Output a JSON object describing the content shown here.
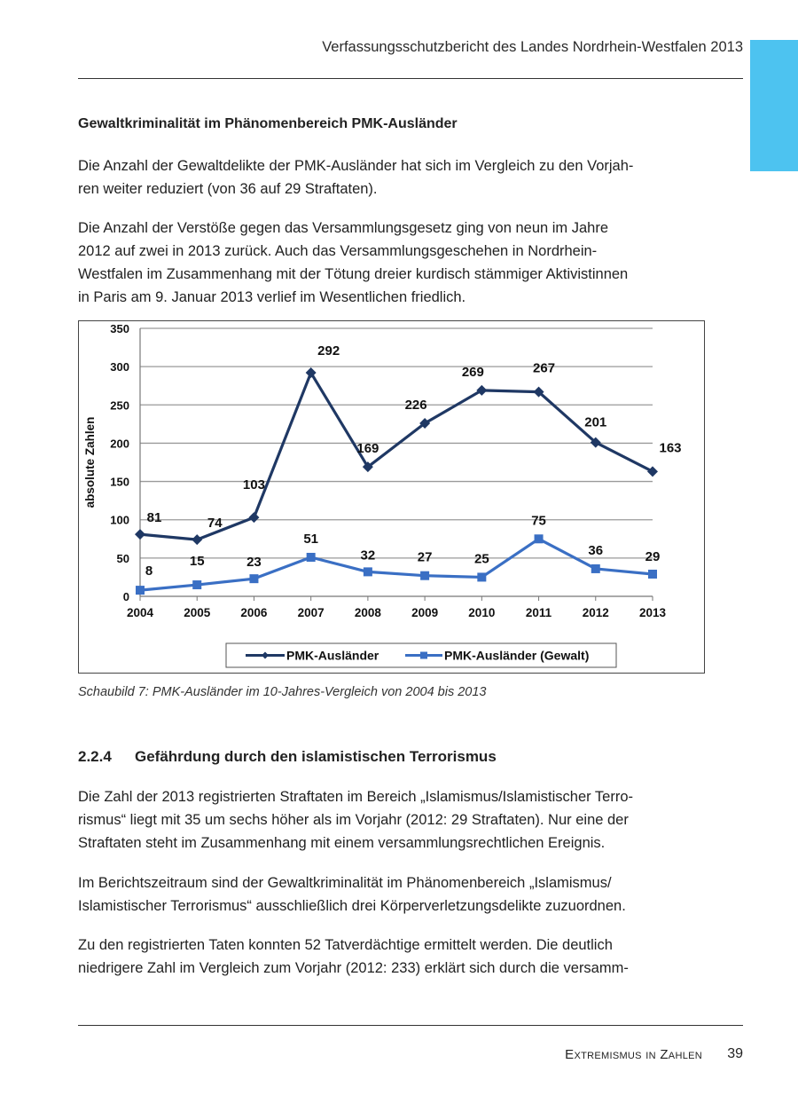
{
  "header": {
    "title": "Verfassungsschutzbericht des Landes Nordrhein-Westfalen 2013"
  },
  "section_a": {
    "heading": "Gewaltkriminalität im Phänomenbereich PMK-Ausländer",
    "p1_l1": "Die Anzahl der Gewaltdelikte der PMK-Ausländer hat sich im Vergleich zu den Vorjah-",
    "p1_l2": "ren weiter reduziert (von 36 auf 29 Straftaten).",
    "p2_l1": "Die Anzahl der Verstöße gegen das Versammlungsgesetz ging von neun im Jahre",
    "p2_l2": "2012 auf zwei in 2013 zurück. Auch das Versammlungsgeschehen in Nordrhein-",
    "p2_l3": "Westfalen im Zusammenhang mit der Tötung dreier kurdisch stämmiger Aktivistinnen",
    "p2_l4": "in Paris am 9. Januar 2013 verlief im Wesentlichen friedlich."
  },
  "chart_data": {
    "type": "line",
    "x": [
      "2004",
      "2005",
      "2006",
      "2007",
      "2008",
      "2009",
      "2010",
      "2011",
      "2012",
      "2013"
    ],
    "ylabel": "absolute Zahlen",
    "ylim": [
      0,
      350
    ],
    "yticks": [
      "0",
      "50",
      "100",
      "150",
      "200",
      "250",
      "300",
      "350"
    ],
    "grid": true,
    "legend_position": "bottom",
    "series": [
      {
        "name": "PMK-Ausländer",
        "values": [
          81,
          74,
          103,
          292,
          169,
          226,
          269,
          267,
          201,
          163
        ],
        "color": "#1f3864"
      },
      {
        "name": "PMK-Ausländer (Gewalt)",
        "values": [
          8,
          15,
          23,
          51,
          32,
          27,
          25,
          75,
          36,
          29
        ],
        "color": "#3a6fc4"
      }
    ]
  },
  "caption": "Schaubild 7: PMK-Ausländer im 10-Jahres-Vergleich von 2004 bis 2013",
  "section_b": {
    "number": "2.2.4",
    "title": "Gefährdung durch den islamistischen Terrorismus",
    "p1_l1": "Die Zahl der 2013 registrierten Straftaten im Bereich „Islamismus/Islamistischer Terro-",
    "p1_l2": "rismus“ liegt mit 35 um sechs höher als im Vorjahr (2012: 29 Straftaten). Nur eine der",
    "p1_l3": "Straftaten steht im Zusammenhang mit einem versammlungsrechtlichen Ereignis.",
    "p2_l1": "Im Berichtszeitraum sind der Gewaltkriminalität im Phänomenbereich „Islamismus/",
    "p2_l2": "Islamistischer Terrorismus“ ausschließlich drei Körperverletzungsdelikte zuzuordnen.",
    "p3_l1": "Zu den registrierten Taten konnten 52 Tatverdächtige ermittelt werden. Die deutlich",
    "p3_l2": "niedrigere Zahl im Vergleich zum Vorjahr (2012: 233) erklärt sich durch die versamm-"
  },
  "footer": {
    "title": "Extremismus in Zahlen",
    "page": "39"
  }
}
